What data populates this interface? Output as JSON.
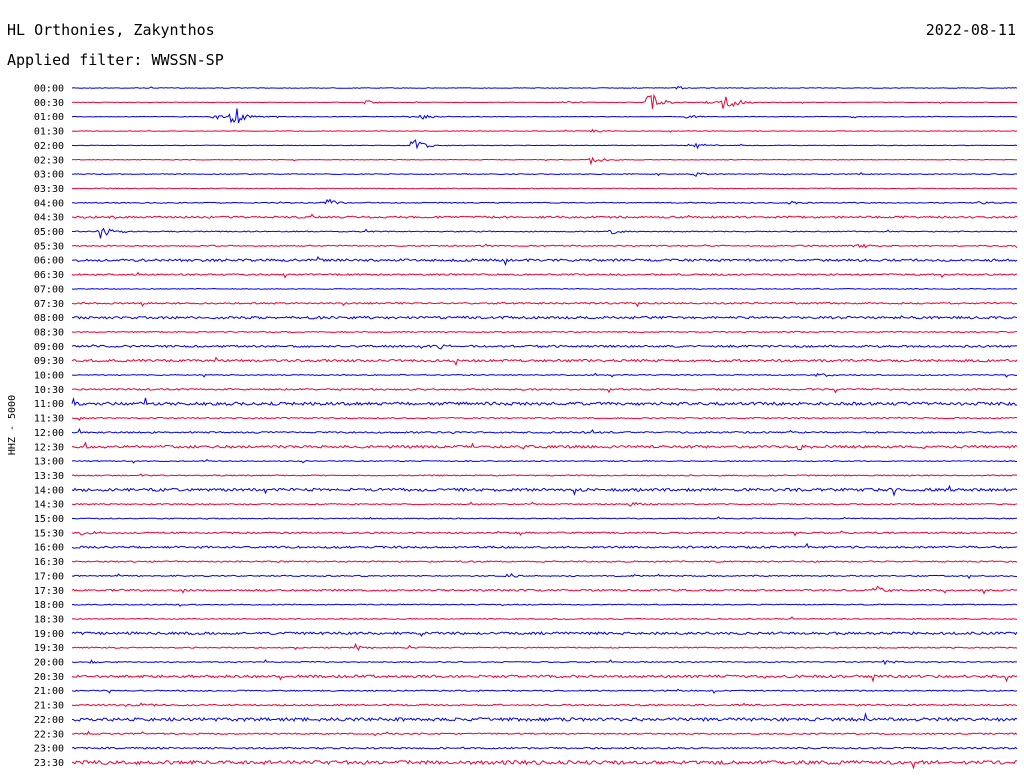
{
  "header": {
    "station": "HL Orthonies, Zakynthos",
    "date": "2022-08-11",
    "filter_label": "Applied filter:",
    "filter_value": "WWSSN-SP"
  },
  "chart_data": {
    "type": "line",
    "ylabel": "HHZ - 5000",
    "row_labels": [
      "00:00",
      "00:30",
      "01:00",
      "01:30",
      "02:00",
      "02:30",
      "03:00",
      "03:30",
      "04:00",
      "04:30",
      "05:00",
      "05:30",
      "06:00",
      "06:30",
      "07:00",
      "07:30",
      "08:00",
      "08:30",
      "09:00",
      "09:30",
      "10:00",
      "10:30",
      "11:00",
      "11:30",
      "12:00",
      "12:30",
      "13:00",
      "13:30",
      "14:00",
      "14:30",
      "15:00",
      "15:30",
      "16:00",
      "16:30",
      "17:00",
      "17:30",
      "18:00",
      "18:30",
      "19:00",
      "19:30",
      "20:00",
      "20:30",
      "21:00",
      "21:30",
      "22:00",
      "22:30",
      "23:00",
      "23:30"
    ],
    "colors": [
      "#0000ee",
      "#ee0033"
    ],
    "noise_levels": [
      0.3,
      0.3,
      0.3,
      0.3,
      0.3,
      0.3,
      0.4,
      0.4,
      0.5,
      1.0,
      0.5,
      0.6,
      1.2,
      0.8,
      0.4,
      0.8,
      1.2,
      0.6,
      1.0,
      1.2,
      0.5,
      0.8,
      1.5,
      0.6,
      0.8,
      1.3,
      0.5,
      0.6,
      1.4,
      0.6,
      0.5,
      0.8,
      1.0,
      0.7,
      0.6,
      0.9,
      0.5,
      0.5,
      1.2,
      0.6,
      0.5,
      1.3,
      0.6,
      0.8,
      1.6,
      0.7,
      0.8,
      1.8
    ],
    "events": [
      {
        "row": 0,
        "x": 0.64,
        "amp": 2
      },
      {
        "row": 1,
        "x": 0.67,
        "amp": 2
      },
      {
        "row": 1,
        "x": 0.31,
        "amp": 2
      },
      {
        "row": 1,
        "x": 0.52,
        "amp": 2
      },
      {
        "row": 1,
        "x": 0.61,
        "amp": 12
      },
      {
        "row": 1,
        "x": 0.69,
        "amp": 10
      },
      {
        "row": 2,
        "x": 0.15,
        "amp": 3
      },
      {
        "row": 2,
        "x": 0.17,
        "amp": 12
      },
      {
        "row": 2,
        "x": 0.37,
        "amp": 3
      },
      {
        "row": 2,
        "x": 0.65,
        "amp": 2
      },
      {
        "row": 3,
        "x": 0.55,
        "amp": 2
      },
      {
        "row": 4,
        "x": 0.36,
        "amp": 9
      },
      {
        "row": 4,
        "x": 0.66,
        "amp": 3
      },
      {
        "row": 5,
        "x": 0.55,
        "amp": 5
      },
      {
        "row": 6,
        "x": 0.66,
        "amp": 2
      },
      {
        "row": 8,
        "x": 0.27,
        "amp": 4
      },
      {
        "row": 8,
        "x": 0.76,
        "amp": 2
      },
      {
        "row": 8,
        "x": 0.96,
        "amp": 2
      },
      {
        "row": 10,
        "x": 0.03,
        "amp": 7
      },
      {
        "row": 10,
        "x": 0.57,
        "amp": 3
      },
      {
        "row": 11,
        "x": 0.83,
        "amp": 3
      },
      {
        "row": 18,
        "x": 0.39,
        "amp": 3
      },
      {
        "row": 20,
        "x": 0.79,
        "amp": 3
      },
      {
        "row": 25,
        "x": 0.77,
        "amp": 5
      },
      {
        "row": 29,
        "x": 0.59,
        "amp": 3
      },
      {
        "row": 31,
        "x": 0.01,
        "amp": 3
      },
      {
        "row": 34,
        "x": 0.46,
        "amp": 3
      },
      {
        "row": 35,
        "x": 0.85,
        "amp": 5
      },
      {
        "row": 39,
        "x": 0.3,
        "amp": 4
      },
      {
        "row": 40,
        "x": 0.02,
        "amp": 2
      },
      {
        "row": 40,
        "x": 0.86,
        "amp": 2
      },
      {
        "row": 43,
        "x": 0.07,
        "amp": 2
      }
    ]
  }
}
